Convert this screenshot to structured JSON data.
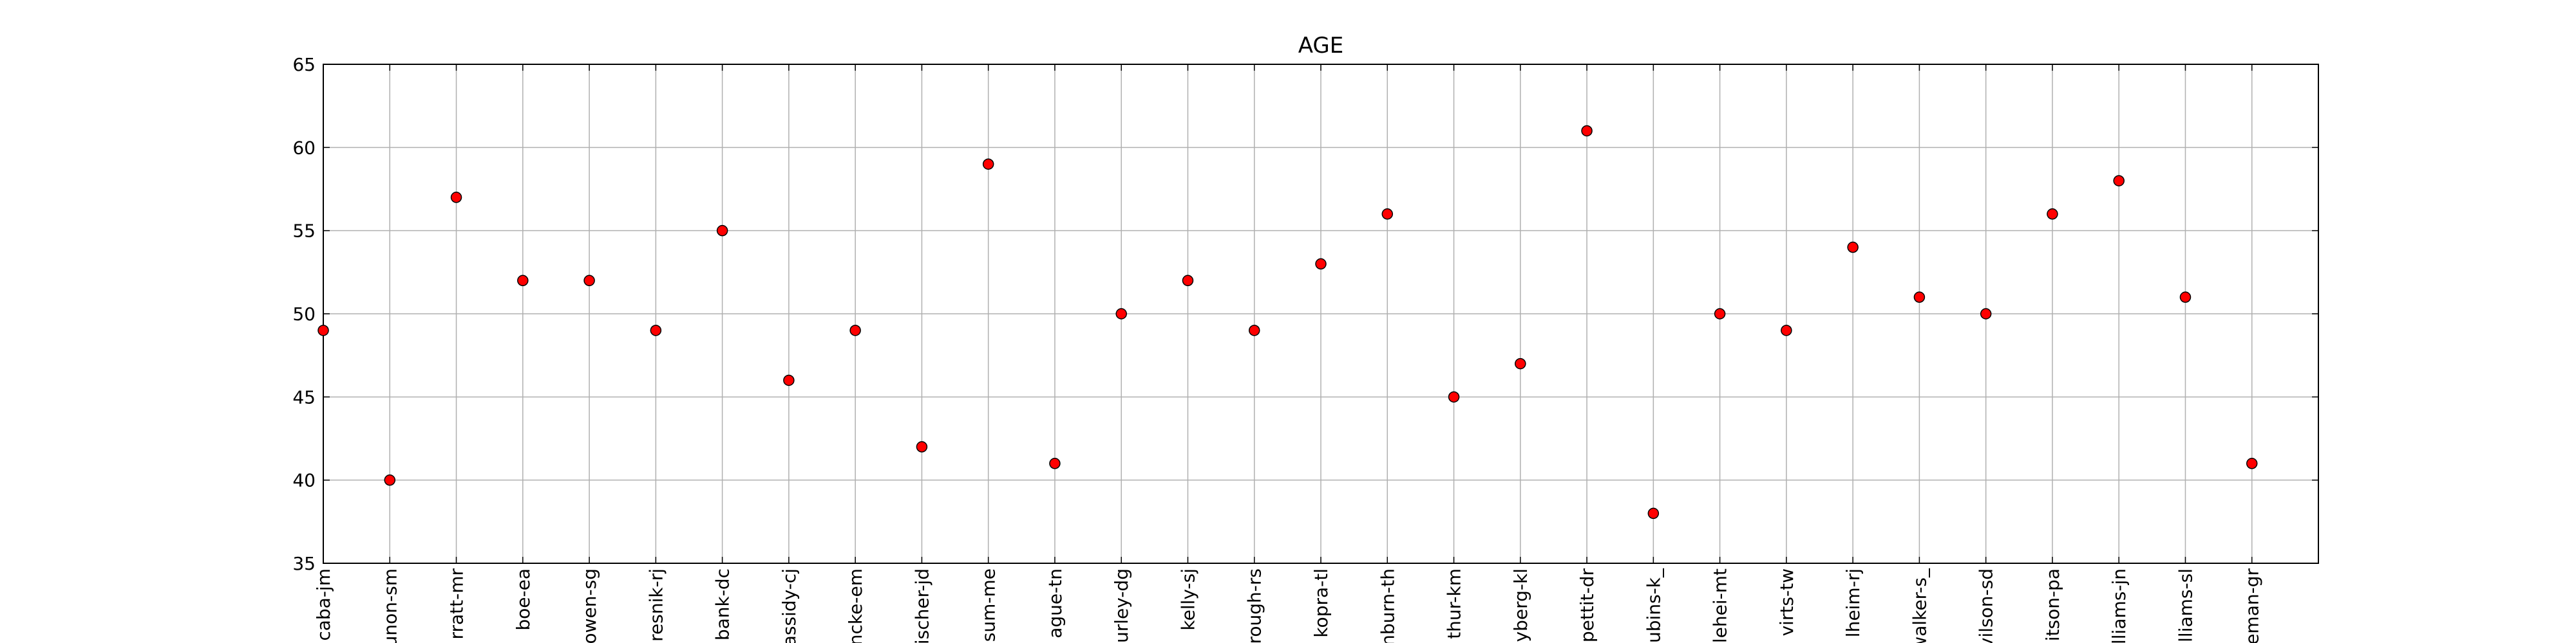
{
  "chart_data": {
    "type": "scatter",
    "title": "AGE",
    "xlabel": "",
    "ylabel": "",
    "ylim": [
      35,
      65
    ],
    "yticks": [
      35,
      40,
      45,
      50,
      55,
      60,
      65
    ],
    "grid": true,
    "legend": "none",
    "marker_color": "#ff0000",
    "marker_edge_color": "#000000",
    "categories": [
      "caba-jm",
      "unon-sm",
      "rratt-mr",
      "boe-ea",
      "owen-sg",
      "resnik-rj",
      "bank-dc",
      "assidy-cj",
      "ncke-em",
      "ischer-jd",
      "sum-me",
      "ague-tn",
      "urley-dg",
      "kelly-sj",
      "rough-rs",
      "kopra-tl",
      "nburn-th",
      "thur-km",
      "yberg-kl",
      "pettit-dr",
      "ubins-k_",
      "lehei-mt",
      "virts-tw",
      "lheim-rj",
      "walker-s_",
      "vilson-sd",
      "itson-pa",
      "lliams-jn",
      "lliams-sl",
      "eman-gr"
    ],
    "values": [
      49,
      40,
      57,
      52,
      52,
      49,
      55,
      46,
      49,
      42,
      59,
      41,
      50,
      52,
      49,
      53,
      56,
      45,
      47,
      61,
      38,
      50,
      49,
      54,
      51,
      50,
      56,
      58,
      51,
      41
    ]
  }
}
